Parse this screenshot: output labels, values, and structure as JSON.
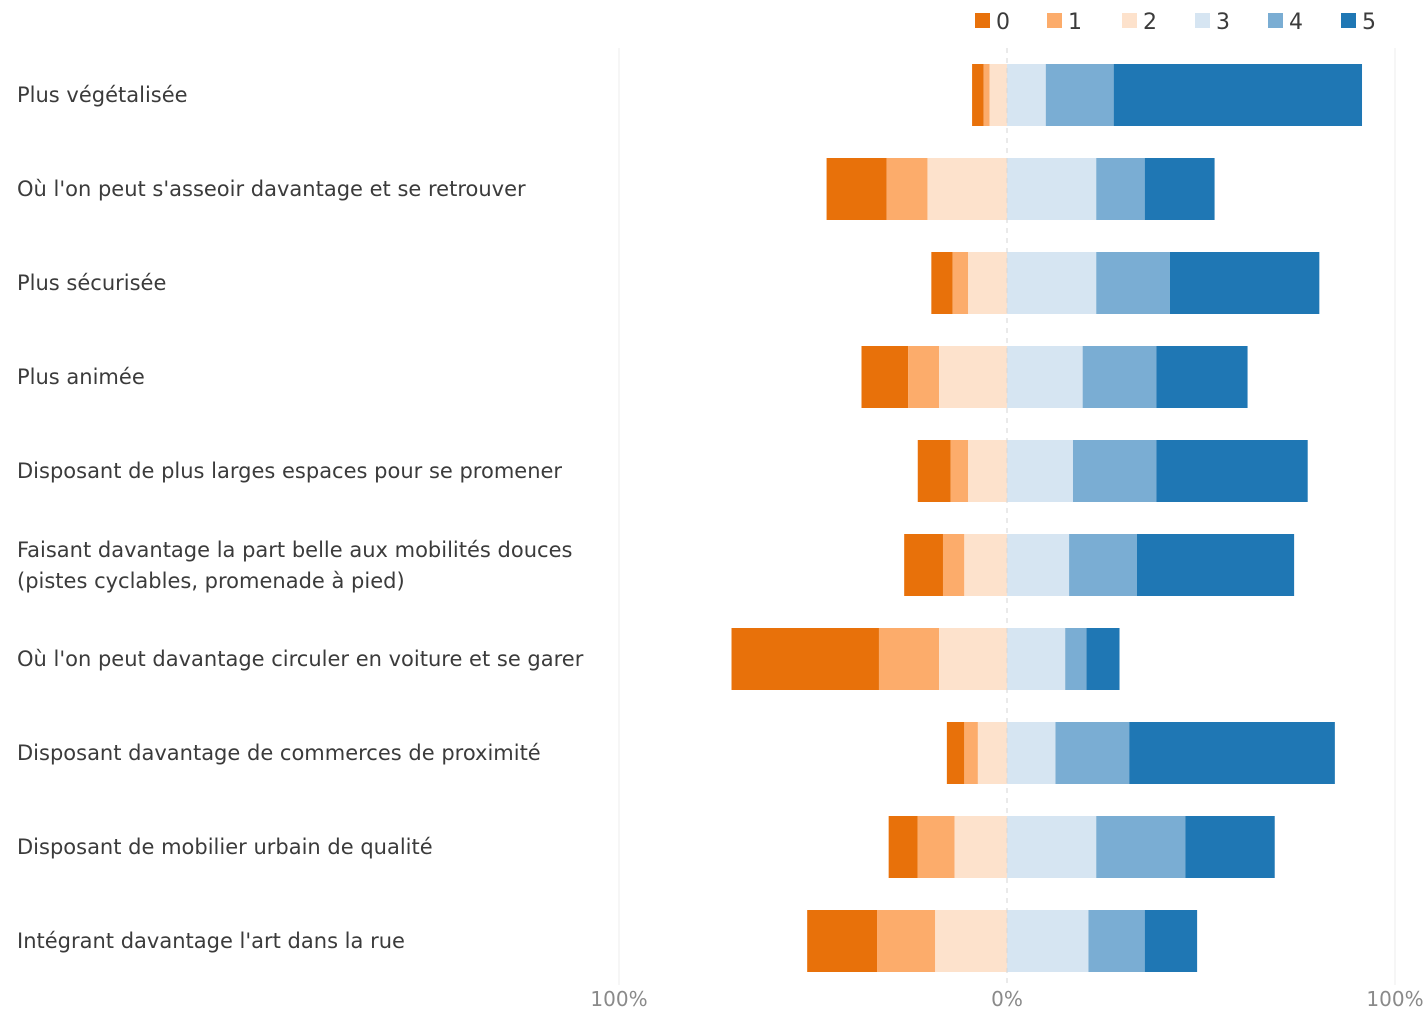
{
  "chart_data": {
    "type": "bar",
    "orientation": "horizontal",
    "stacking": "diverging",
    "legend": [
      "0",
      "1",
      "2",
      "3",
      "4",
      "5"
    ],
    "legend_position": "top-right",
    "colors": [
      "#E8710A",
      "#FCAC6B",
      "#FDE2CC",
      "#D6E5F2",
      "#7AADD3",
      "#1F77B4"
    ],
    "x_tick_labels": [
      "100%",
      "0%",
      "100%"
    ],
    "xlim": [
      -100,
      100
    ],
    "categories": [
      [
        "Plus végétalisée"
      ],
      [
        "Où l'on peut s'asseoir davantage et se retrouver"
      ],
      [
        "Plus sécurisée"
      ],
      [
        "Plus animée"
      ],
      [
        "Disposant de plus larges espaces pour se promener"
      ],
      [
        "Faisant davantage la part belle aux mobilités douces",
        "(pistes cyclables, promenade à pied)"
      ],
      [
        "Où l'on peut davantage circuler en voiture et se garer"
      ],
      [
        "Disposant davantage de commerces de proximité"
      ],
      [
        "Disposant de mobilier urbain de qualité"
      ],
      [
        "Intégrant davantage l'art dans la rue"
      ]
    ],
    "series": [
      {
        "name": "0",
        "values": [
          3.0,
          15.5,
          5.5,
          12.0,
          8.5,
          10.0,
          38.0,
          4.5,
          7.5,
          18.0
        ]
      },
      {
        "name": "1",
        "values": [
          1.5,
          10.5,
          4.0,
          8.0,
          4.5,
          5.5,
          15.5,
          3.5,
          9.5,
          15.0
        ]
      },
      {
        "name": "2",
        "values": [
          4.5,
          20.5,
          10.0,
          17.5,
          10.0,
          11.0,
          17.5,
          7.5,
          13.5,
          18.5
        ]
      },
      {
        "name": "3",
        "values": [
          10.0,
          23.0,
          23.0,
          19.5,
          17.0,
          16.0,
          15.0,
          12.5,
          23.0,
          21.0
        ]
      },
      {
        "name": "4",
        "values": [
          17.5,
          12.5,
          19.0,
          19.0,
          21.5,
          17.5,
          5.5,
          19.0,
          23.0,
          14.5
        ]
      },
      {
        "name": "5",
        "values": [
          64.0,
          18.0,
          38.5,
          23.5,
          39.0,
          40.5,
          8.5,
          53.0,
          23.0,
          13.5
        ]
      }
    ]
  }
}
